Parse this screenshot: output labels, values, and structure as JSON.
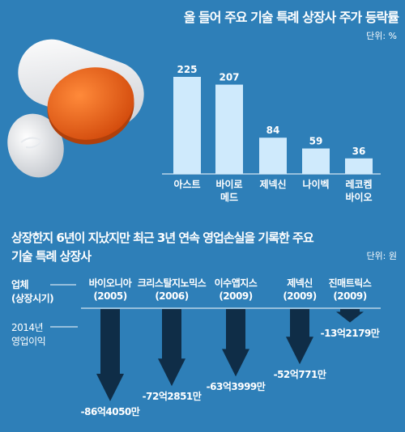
{
  "chart_data": [
    {
      "type": "bar",
      "title": "올 들어 주요 기술 특례 상장사 주가 등락률",
      "unit": "단위: %",
      "categories": [
        "아스트",
        "바이로 메드",
        "제넥신",
        "나이벡",
        "레코켐 바이오"
      ],
      "category_lines": [
        [
          "아스트"
        ],
        [
          "바이로",
          "메드"
        ],
        [
          "제넥신"
        ],
        [
          "나이벡"
        ],
        [
          "레코켐",
          "바이오"
        ]
      ],
      "values": [
        225,
        207,
        84,
        59,
        36
      ],
      "value_labels": [
        "225",
        "207",
        "84",
        "59",
        "36"
      ],
      "ylim": [
        0,
        240
      ]
    },
    {
      "type": "bar",
      "title": "상장한지 6년이 지났지만 최근 3년 연속 영업손실을 기록한 주요 기술 특례 상장사",
      "title_lines": [
        "상장한지 6년이 지났지만 최근 3년 연속 영업손실을 기록한 주요",
        "기술 특례 상장사"
      ],
      "unit": "단위: 원",
      "header_label": [
        "업체",
        "(상장시기)"
      ],
      "row_label": [
        "2014년",
        "영업이익"
      ],
      "categories": [
        "바이오니아",
        "크리스탈지노믹스",
        "이수앱지스",
        "제넥신",
        "진매트릭스"
      ],
      "years": [
        "(2005)",
        "(2006)",
        "(2009)",
        "(2009)",
        "(2009)"
      ],
      "values": [
        -8640500000,
        -7228510000,
        -6339990000,
        -5207710000,
        -1321790000
      ],
      "value_labels": [
        "-86억4050만",
        "-72억2851만",
        "-63억3999만",
        "-52억771만",
        "-13억2179만"
      ]
    }
  ]
}
